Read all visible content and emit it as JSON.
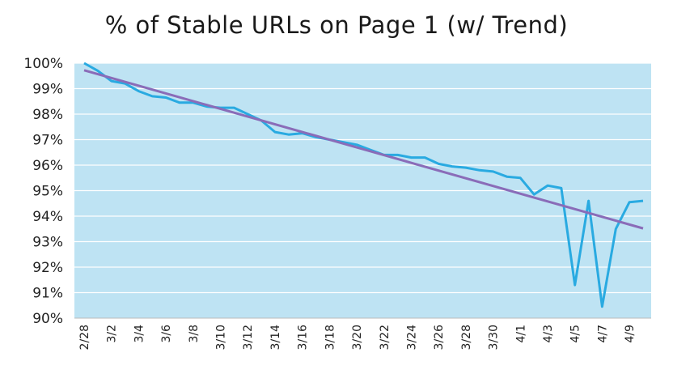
{
  "chart_data": {
    "type": "line",
    "title": "% of Stable URLs on Page 1 (w/ Trend)",
    "xlabel": "",
    "ylabel": "",
    "ylim": [
      90,
      100
    ],
    "y_tick_labels": [
      "90%",
      "91%",
      "92%",
      "93%",
      "94%",
      "95%",
      "96%",
      "97%",
      "98%",
      "99%",
      "100%"
    ],
    "x_tick_labels": [
      "2/28",
      "3/2",
      "3/4",
      "3/6",
      "3/8",
      "3/10",
      "3/12",
      "3/14",
      "3/16",
      "3/18",
      "3/20",
      "3/22",
      "3/24",
      "3/26",
      "3/28",
      "3/30",
      "4/1",
      "4/3",
      "4/5",
      "4/7",
      "4/9"
    ],
    "grid": true,
    "background_color": "#bee3f3",
    "series": [
      {
        "color": "#29aae1",
        "values": [
          100.0,
          99.7,
          99.3,
          99.2,
          98.9,
          98.7,
          98.65,
          98.45,
          98.45,
          98.3,
          98.25,
          98.25,
          98.0,
          97.75,
          97.3,
          97.2,
          97.25,
          97.1,
          97.0,
          96.9,
          96.8,
          96.6,
          96.4,
          96.4,
          96.3,
          96.3,
          96.05,
          95.95,
          95.9,
          95.8,
          95.75,
          95.55,
          95.5,
          94.85,
          95.2,
          95.1,
          91.3,
          94.6,
          90.45,
          93.5,
          94.55,
          94.6
        ]
      }
    ],
    "trend": {
      "color": "#8a6cb8",
      "start": 99.72,
      "end": 93.52
    }
  }
}
